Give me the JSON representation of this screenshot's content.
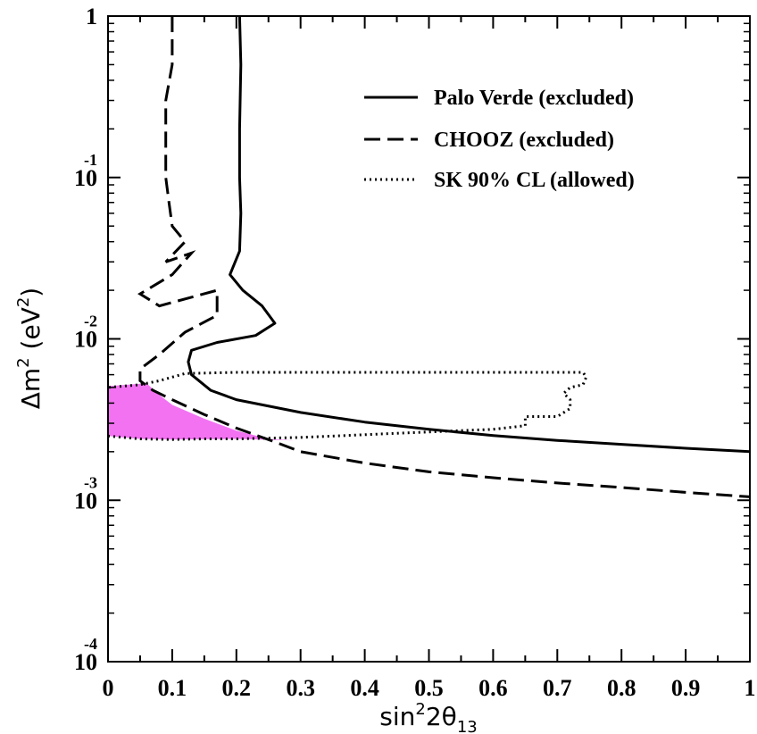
{
  "chart_data": {
    "type": "line",
    "xlim": [
      0,
      1
    ],
    "ylim": [
      0.0001,
      1
    ],
    "yscale": "log",
    "grid": false,
    "legend_position": "top-right",
    "x_ticks": [
      "0",
      "0.1",
      "0.2",
      "0.3",
      "0.4",
      "0.5",
      "0.6",
      "0.7",
      "0.8",
      "0.9",
      "1"
    ],
    "y_ticks": [
      {
        "base": "1",
        "exp": ""
      },
      {
        "base": "10",
        "exp": "-1"
      },
      {
        "base": "10",
        "exp": "-2"
      },
      {
        "base": "10",
        "exp": "-3"
      },
      {
        "base": "10",
        "exp": "-4"
      }
    ],
    "xlabel": {
      "prefix": "sin",
      "sup": "2",
      "mid": "2θ",
      "sub": "13"
    },
    "ylabel": {
      "prefix": "Δm",
      "sup1": "2",
      "mid": " (eV",
      "sup2": "2",
      "suffix": ")"
    },
    "series": [
      {
        "name": "Palo Verde (excluded)",
        "style": "solid",
        "color": "#000000",
        "points": [
          [
            0.205,
            1
          ],
          [
            0.207,
            0.5
          ],
          [
            0.205,
            0.2
          ],
          [
            0.205,
            0.1
          ],
          [
            0.207,
            0.06
          ],
          [
            0.205,
            0.035
          ],
          [
            0.19,
            0.025
          ],
          [
            0.21,
            0.02
          ],
          [
            0.24,
            0.016
          ],
          [
            0.26,
            0.0125
          ],
          [
            0.23,
            0.0105
          ],
          [
            0.17,
            0.0095
          ],
          [
            0.13,
            0.0085
          ],
          [
            0.125,
            0.0072
          ],
          [
            0.13,
            0.006
          ],
          [
            0.16,
            0.0048
          ],
          [
            0.2,
            0.0042
          ],
          [
            0.3,
            0.0035
          ],
          [
            0.4,
            0.00305
          ],
          [
            0.5,
            0.00275
          ],
          [
            0.6,
            0.00252
          ],
          [
            0.7,
            0.00235
          ],
          [
            0.8,
            0.00222
          ],
          [
            0.9,
            0.0021
          ],
          [
            1.0,
            0.002
          ]
        ]
      },
      {
        "name": "CHOOZ (excluded)",
        "style": "dashed",
        "color": "#000000",
        "points": [
          [
            0.1,
            1
          ],
          [
            0.1,
            0.5
          ],
          [
            0.09,
            0.3
          ],
          [
            0.09,
            0.2
          ],
          [
            0.09,
            0.1
          ],
          [
            0.095,
            0.07
          ],
          [
            0.1,
            0.05
          ],
          [
            0.12,
            0.04
          ],
          [
            0.09,
            0.03
          ],
          [
            0.13,
            0.034
          ],
          [
            0.1,
            0.025
          ],
          [
            0.05,
            0.019
          ],
          [
            0.08,
            0.016
          ],
          [
            0.17,
            0.02
          ],
          [
            0.17,
            0.014
          ],
          [
            0.12,
            0.011
          ],
          [
            0.08,
            0.008
          ],
          [
            0.05,
            0.0065
          ],
          [
            0.05,
            0.0055
          ],
          [
            0.07,
            0.0048
          ],
          [
            0.1,
            0.0042
          ],
          [
            0.15,
            0.0034
          ],
          [
            0.2,
            0.0028
          ],
          [
            0.26,
            0.0023
          ],
          [
            0.3,
            0.002
          ],
          [
            0.4,
            0.0017
          ],
          [
            0.5,
            0.0015
          ],
          [
            0.6,
            0.00138
          ],
          [
            0.7,
            0.00128
          ],
          [
            0.8,
            0.0012
          ],
          [
            0.9,
            0.00112
          ],
          [
            1.0,
            0.00105
          ]
        ]
      },
      {
        "name": "SK 90% CL (allowed)",
        "style": "dotted",
        "color": "#000000",
        "points": [
          [
            0.0,
            0.0025
          ],
          [
            0.05,
            0.0024
          ],
          [
            0.1,
            0.00238
          ],
          [
            0.15,
            0.0024
          ],
          [
            0.2,
            0.0024
          ],
          [
            0.3,
            0.00245
          ],
          [
            0.4,
            0.00255
          ],
          [
            0.5,
            0.00265
          ],
          [
            0.6,
            0.00275
          ],
          [
            0.65,
            0.0029
          ],
          [
            0.65,
            0.0033
          ],
          [
            0.7,
            0.0033
          ],
          [
            0.72,
            0.0037
          ],
          [
            0.72,
            0.0042
          ],
          [
            0.71,
            0.0046
          ],
          [
            0.72,
            0.005
          ],
          [
            0.74,
            0.0052
          ],
          [
            0.745,
            0.0058
          ],
          [
            0.74,
            0.0062
          ],
          [
            0.6,
            0.0062
          ],
          [
            0.4,
            0.0062
          ],
          [
            0.2,
            0.0062
          ],
          [
            0.12,
            0.0061
          ],
          [
            0.08,
            0.0055
          ],
          [
            0.05,
            0.0052
          ],
          [
            0.0,
            0.005
          ]
        ]
      }
    ],
    "shaded_region": {
      "color": "#f272f2",
      "points": [
        [
          0.0,
          0.0051
        ],
        [
          0.06,
          0.0053
        ],
        [
          0.08,
          0.0045
        ],
        [
          0.1,
          0.0039
        ],
        [
          0.15,
          0.0032
        ],
        [
          0.2,
          0.0027
        ],
        [
          0.25,
          0.0024
        ],
        [
          0.29,
          0.00235
        ],
        [
          0.2,
          0.0024
        ],
        [
          0.1,
          0.00238
        ],
        [
          0.05,
          0.0024
        ],
        [
          0.0,
          0.0025
        ]
      ]
    }
  }
}
